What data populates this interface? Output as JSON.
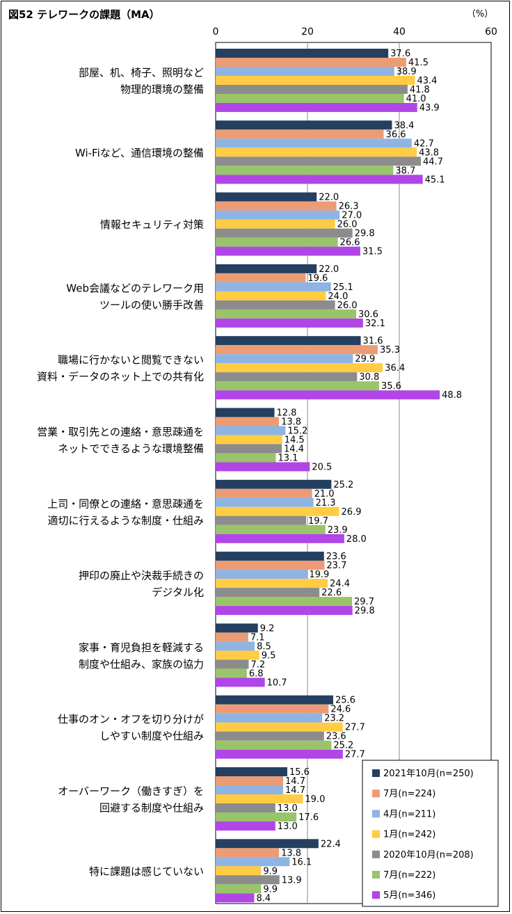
{
  "chart_data": {
    "type": "bar",
    "orientation": "horizontal",
    "title": "図52 テレワークの課題（MA）",
    "unit_label": "（%）",
    "xlim": [
      0,
      60
    ],
    "xticks": [
      0,
      20,
      40,
      60
    ],
    "grid": true,
    "legend_position": "bottom-right",
    "categories": [
      [
        "部屋、机、椅子、照明など",
        "物理的環境の整備"
      ],
      [
        "Wi-Fiなど、通信環境の整備"
      ],
      [
        "情報セキュリティ対策"
      ],
      [
        "Web会議などのテレワーク用",
        "ツールの使い勝手改善"
      ],
      [
        "職場に行かないと閲覧できない",
        "資料・データのネット上での共有化"
      ],
      [
        "営業・取引先との連絡・意思疎通を",
        "ネットでできるような環境整備"
      ],
      [
        "上司・同僚との連絡・意思疎通を",
        "適切に行えるような制度・仕組み"
      ],
      [
        "押印の廃止や決裁手続きの",
        "デジタル化"
      ],
      [
        "家事・育児負担を軽減する",
        "制度や仕組み、家族の協力"
      ],
      [
        "仕事のオン・オフを切り分けが",
        "しやすい制度や仕組み"
      ],
      [
        "オーバーワーク（働きすぎ）を",
        "回避する制度や仕組み"
      ],
      [
        "特に課題は感じていない"
      ]
    ],
    "series": [
      {
        "name": "2021年10月(n=250)",
        "color": "#243f60",
        "values": [
          37.6,
          38.4,
          22.0,
          22.0,
          31.6,
          12.8,
          25.2,
          23.6,
          9.2,
          25.6,
          15.6,
          22.4
        ]
      },
      {
        "name": "7月(n=224)",
        "color": "#eb9c74",
        "values": [
          41.5,
          36.6,
          26.3,
          19.6,
          35.3,
          13.8,
          21.0,
          23.7,
          7.1,
          24.6,
          14.7,
          13.8
        ]
      },
      {
        "name": "4月(n=211)",
        "color": "#8eb4e3",
        "values": [
          38.9,
          42.7,
          27.0,
          25.1,
          29.9,
          15.2,
          21.3,
          19.9,
          8.5,
          23.2,
          14.7,
          16.1
        ]
      },
      {
        "name": "1月(n=242)",
        "color": "#ffcc44",
        "values": [
          43.4,
          43.8,
          26.0,
          24.0,
          36.4,
          14.5,
          26.9,
          24.4,
          9.5,
          27.7,
          19.0,
          9.9
        ]
      },
      {
        "name": "2020年10月(n=208)",
        "color": "#8c8c8c",
        "values": [
          41.8,
          44.7,
          29.8,
          26.0,
          30.8,
          14.4,
          19.7,
          22.6,
          7.2,
          23.6,
          13.0,
          13.9
        ]
      },
      {
        "name": "7月(n=222)",
        "color": "#99c46a",
        "values": [
          41.0,
          38.7,
          26.6,
          30.6,
          35.6,
          13.1,
          23.9,
          29.7,
          6.8,
          25.2,
          17.6,
          9.9
        ]
      },
      {
        "name": "5月(n=346)",
        "color": "#b146e6",
        "values": [
          43.9,
          45.1,
          31.5,
          32.1,
          48.8,
          20.5,
          28.0,
          29.8,
          10.7,
          27.7,
          13.0,
          8.4
        ]
      }
    ]
  }
}
